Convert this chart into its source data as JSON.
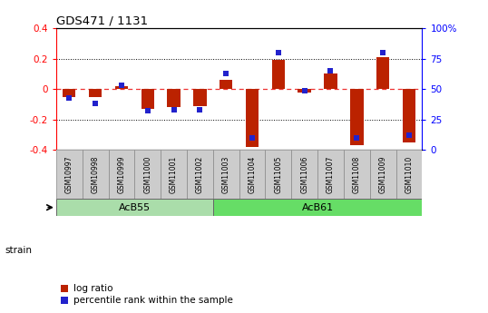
{
  "title": "GDS471 / 1131",
  "samples": [
    "GSM10997",
    "GSM10998",
    "GSM10999",
    "GSM11000",
    "GSM11001",
    "GSM11002",
    "GSM11003",
    "GSM11004",
    "GSM11005",
    "GSM11006",
    "GSM11007",
    "GSM11008",
    "GSM11009",
    "GSM11010"
  ],
  "log_ratio": [
    -0.05,
    -0.05,
    0.02,
    -0.13,
    -0.12,
    -0.11,
    0.06,
    -0.38,
    0.19,
    -0.02,
    0.1,
    -0.37,
    0.21,
    -0.35
  ],
  "percentile": [
    43,
    38,
    53,
    32,
    33,
    33,
    63,
    10,
    80,
    49,
    65,
    10,
    80,
    12
  ],
  "groups": [
    {
      "label": "AcB55",
      "start": 0,
      "end": 5,
      "color": "#99ee99"
    },
    {
      "label": "AcB61",
      "start": 6,
      "end": 13,
      "color": "#55dd55"
    }
  ],
  "bar_color_red": "#bb2200",
  "bar_color_blue": "#2222cc",
  "ylim": [
    -0.4,
    0.4
  ],
  "y2lim": [
    0,
    100
  ],
  "yticks": [
    -0.4,
    -0.2,
    0.0,
    0.2,
    0.4
  ],
  "y2ticks": [
    0,
    25,
    50,
    75,
    100
  ],
  "hline_zero_color": "#ee3333",
  "hline_dotted_color": "#000000",
  "legend_items": [
    "log ratio",
    "percentile rank within the sample"
  ],
  "strain_label": "strain",
  "bar_width": 0.5,
  "group_colors": [
    "#aaddaa",
    "#66dd66"
  ]
}
